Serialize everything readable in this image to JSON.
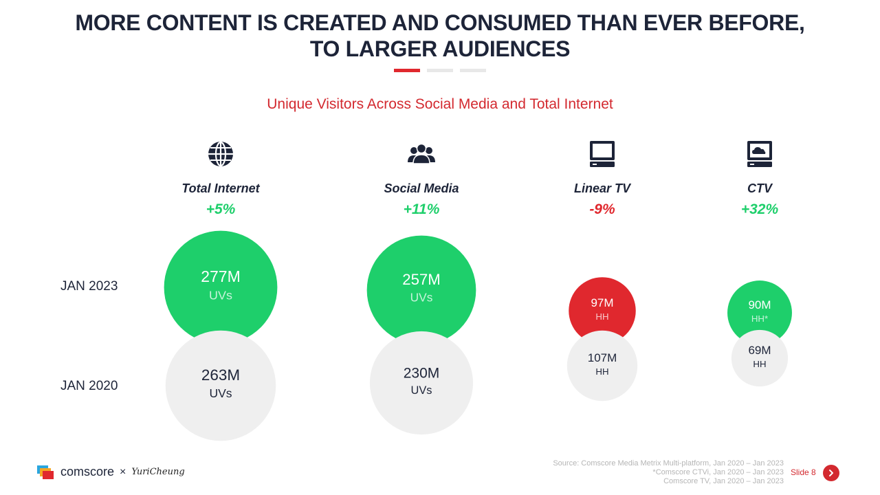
{
  "title": {
    "line1": "MORE CONTENT IS CREATED AND CONSUMED THAN EVER BEFORE,",
    "line2": "TO LARGER AUDIENCES"
  },
  "subtitle": "Unique Visitors Across Social Media and Total Internet",
  "colors": {
    "green": "#1ecf6b",
    "red": "#e0282e",
    "grey": "#efefef",
    "navy": "#1d2438",
    "accent": "#d3292f"
  },
  "categories": [
    {
      "name": "Total Internet",
      "change": "+5%",
      "change_color": "#1ecf6b",
      "icon": "globe-icon"
    },
    {
      "name": "Social Media",
      "change": "+11%",
      "change_color": "#1ecf6b",
      "icon": "users-icon"
    },
    {
      "name": "Linear TV",
      "change": "-9%",
      "change_color": "#e0282e",
      "icon": "tv-icon"
    },
    {
      "name": "CTV",
      "change": "+32%",
      "change_color": "#1ecf6b",
      "icon": "ctv-icon"
    }
  ],
  "row_labels": {
    "recent": "JAN 2023",
    "base": "JAN 2020"
  },
  "chart_data": {
    "type": "bubble",
    "title": "Unique Visitors Across Social Media and Total Internet",
    "series": [
      {
        "name": "JAN 2023",
        "points": [
          {
            "category": "Total Internet",
            "value": 277,
            "label": "277M",
            "unit": "UVs",
            "color": "#1ecf6b"
          },
          {
            "category": "Social Media",
            "value": 257,
            "label": "257M",
            "unit": "UVs",
            "color": "#1ecf6b"
          },
          {
            "category": "Linear TV",
            "value": 97,
            "label": "97M",
            "unit": "HH",
            "color": "#e0282e"
          },
          {
            "category": "CTV",
            "value": 90,
            "label": "90M",
            "unit": "HH*",
            "color": "#1ecf6b"
          }
        ]
      },
      {
        "name": "JAN 2020",
        "points": [
          {
            "category": "Total Internet",
            "value": 263,
            "label": "263M",
            "unit": "UVs",
            "color": "#efefef"
          },
          {
            "category": "Social Media",
            "value": 230,
            "label": "230M",
            "unit": "UVs",
            "color": "#efefef"
          },
          {
            "category": "Linear TV",
            "value": 107,
            "label": "107M",
            "unit": "HH",
            "color": "#efefef"
          },
          {
            "category": "CTV",
            "value": 69,
            "label": "69M",
            "unit": "HH",
            "color": "#efefef"
          }
        ]
      }
    ]
  },
  "footer": {
    "brand": "comscore",
    "times": "×",
    "partner": "YuriCheung",
    "source_lines": [
      "Source: Comscore Media Metrix Multi-platform, Jan 2020 – Jan 2023",
      "*Comscore CTVi, Jan 2020 – Jan 2023",
      "Comscore TV, Jan 2020 – Jan 2023"
    ],
    "slide": "Slide 8"
  }
}
